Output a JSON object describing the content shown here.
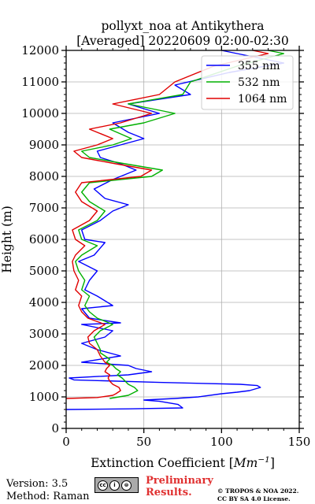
{
  "chart_data": {
    "type": "line",
    "title": "pollyxt_noa at Antikythera",
    "subtitle": "[Averaged] 20220609 02:00-02:30",
    "xlabel_prefix": "Extinction Coefficient [",
    "xlabel_unit": "Mm",
    "xlabel_exp": "−1",
    "xlabel_suffix": "]",
    "ylabel": "Height (m)",
    "xlim": [
      0,
      150
    ],
    "ylim": [
      0,
      12000
    ],
    "xticks": [
      "0",
      "50",
      "100",
      "150"
    ],
    "yticks": [
      "0",
      "1000",
      "2000",
      "3000",
      "4000",
      "5000",
      "6000",
      "7000",
      "8000",
      "9000",
      "10000",
      "11000",
      "12000"
    ],
    "grid": true,
    "legend_position": "top-right",
    "series": [
      {
        "name": "355 nm",
        "color": "#0000ff",
        "points": [
          [
            0,
            600
          ],
          [
            40,
            620
          ],
          [
            75,
            650
          ],
          [
            72,
            760
          ],
          [
            60,
            860
          ],
          [
            50,
            900
          ],
          [
            70,
            950
          ],
          [
            85,
            1000
          ],
          [
            100,
            1100
          ],
          [
            110,
            1150
          ],
          [
            118,
            1200
          ],
          [
            125,
            1300
          ],
          [
            123,
            1360
          ],
          [
            112,
            1400
          ],
          [
            60,
            1460
          ],
          [
            5,
            1540
          ],
          [
            2,
            1600
          ],
          [
            40,
            1700
          ],
          [
            55,
            1800
          ],
          [
            45,
            1900
          ],
          [
            40,
            2000
          ],
          [
            10,
            2100
          ],
          [
            35,
            2300
          ],
          [
            20,
            2500
          ],
          [
            10,
            2700
          ],
          [
            25,
            2900
          ],
          [
            30,
            3100
          ],
          [
            10,
            3300
          ],
          [
            35,
            3350
          ],
          [
            15,
            3500
          ],
          [
            10,
            3800
          ],
          [
            30,
            3900
          ],
          [
            20,
            4200
          ],
          [
            12,
            4400
          ],
          [
            15,
            4700
          ],
          [
            20,
            5000
          ],
          [
            8,
            5300
          ],
          [
            18,
            5500
          ],
          [
            25,
            5900
          ],
          [
            12,
            6000
          ],
          [
            10,
            6300
          ],
          [
            22,
            6600
          ],
          [
            30,
            6900
          ],
          [
            40,
            7100
          ],
          [
            25,
            7300
          ],
          [
            18,
            7600
          ],
          [
            30,
            7900
          ],
          [
            45,
            8200
          ],
          [
            35,
            8400
          ],
          [
            22,
            8600
          ],
          [
            20,
            8800
          ],
          [
            35,
            9000
          ],
          [
            50,
            9200
          ],
          [
            40,
            9400
          ],
          [
            30,
            9700
          ],
          [
            60,
            10000
          ],
          [
            40,
            10300
          ],
          [
            80,
            10600
          ],
          [
            70,
            10900
          ],
          [
            105,
            11300
          ],
          [
            140,
            11600
          ],
          [
            120,
            11800
          ],
          [
            100,
            12000
          ]
        ]
      },
      {
        "name": "532 nm",
        "color": "#00b000",
        "points": [
          [
            28,
            950
          ],
          [
            40,
            1050
          ],
          [
            42,
            1100
          ],
          [
            46,
            1200
          ],
          [
            44,
            1300
          ],
          [
            40,
            1400
          ],
          [
            38,
            1500
          ],
          [
            36,
            1600
          ],
          [
            33,
            1700
          ],
          [
            35,
            1800
          ],
          [
            32,
            1900
          ],
          [
            30,
            2000
          ],
          [
            26,
            2100
          ],
          [
            28,
            2200
          ],
          [
            22,
            2400
          ],
          [
            22,
            2500
          ],
          [
            20,
            2700
          ],
          [
            18,
            2900
          ],
          [
            22,
            3100
          ],
          [
            30,
            3300
          ],
          [
            20,
            3500
          ],
          [
            15,
            3700
          ],
          [
            12,
            3900
          ],
          [
            15,
            4200
          ],
          [
            10,
            4400
          ],
          [
            12,
            4700
          ],
          [
            8,
            5000
          ],
          [
            6,
            5300
          ],
          [
            10,
            5500
          ],
          [
            20,
            5800
          ],
          [
            10,
            6000
          ],
          [
            8,
            6300
          ],
          [
            20,
            6600
          ],
          [
            25,
            6900
          ],
          [
            15,
            7200
          ],
          [
            10,
            7500
          ],
          [
            15,
            7800
          ],
          [
            55,
            8000
          ],
          [
            62,
            8200
          ],
          [
            38,
            8400
          ],
          [
            15,
            8600
          ],
          [
            10,
            8800
          ],
          [
            30,
            9000
          ],
          [
            42,
            9200
          ],
          [
            28,
            9500
          ],
          [
            50,
            9700
          ],
          [
            70,
            10000
          ],
          [
            40,
            10300
          ],
          [
            75,
            10600
          ],
          [
            80,
            11000
          ],
          [
            110,
            11500
          ],
          [
            140,
            11900
          ],
          [
            130,
            12000
          ]
        ]
      },
      {
        "name": "1064 nm",
        "color": "#e00000",
        "points": [
          [
            0,
            950
          ],
          [
            20,
            980
          ],
          [
            30,
            1050
          ],
          [
            32,
            1100
          ],
          [
            35,
            1200
          ],
          [
            34,
            1300
          ],
          [
            30,
            1400
          ],
          [
            28,
            1500
          ],
          [
            27,
            1600
          ],
          [
            28,
            1700
          ],
          [
            25,
            1800
          ],
          [
            26,
            1900
          ],
          [
            28,
            2000
          ],
          [
            25,
            2100
          ],
          [
            22,
            2300
          ],
          [
            20,
            2500
          ],
          [
            15,
            2700
          ],
          [
            14,
            2900
          ],
          [
            18,
            3100
          ],
          [
            25,
            3300
          ],
          [
            14,
            3500
          ],
          [
            10,
            3700
          ],
          [
            8,
            3900
          ],
          [
            10,
            4200
          ],
          [
            6,
            4400
          ],
          [
            8,
            4700
          ],
          [
            5,
            5000
          ],
          [
            4,
            5300
          ],
          [
            6,
            5500
          ],
          [
            12,
            5800
          ],
          [
            6,
            6000
          ],
          [
            4,
            6300
          ],
          [
            15,
            6600
          ],
          [
            20,
            6900
          ],
          [
            10,
            7200
          ],
          [
            6,
            7500
          ],
          [
            10,
            7800
          ],
          [
            48,
            8000
          ],
          [
            55,
            8200
          ],
          [
            32,
            8400
          ],
          [
            10,
            8600
          ],
          [
            5,
            8800
          ],
          [
            20,
            9000
          ],
          [
            30,
            9200
          ],
          [
            15,
            9500
          ],
          [
            35,
            9700
          ],
          [
            55,
            10000
          ],
          [
            30,
            10300
          ],
          [
            60,
            10600
          ],
          [
            70,
            11000
          ],
          [
            95,
            11500
          ],
          [
            130,
            11900
          ],
          [
            120,
            12000
          ]
        ]
      }
    ]
  },
  "footer": {
    "version": "Version: 3.5",
    "method": "Method: Raman",
    "cc_symbols": [
      "cc",
      "i",
      "⊜"
    ],
    "preliminary_1": "Preliminary",
    "preliminary_2": "Results.",
    "copyright_1": "© TROPOS & NOA 2022.",
    "copyright_2": "CC BY SA 4.0 License."
  }
}
